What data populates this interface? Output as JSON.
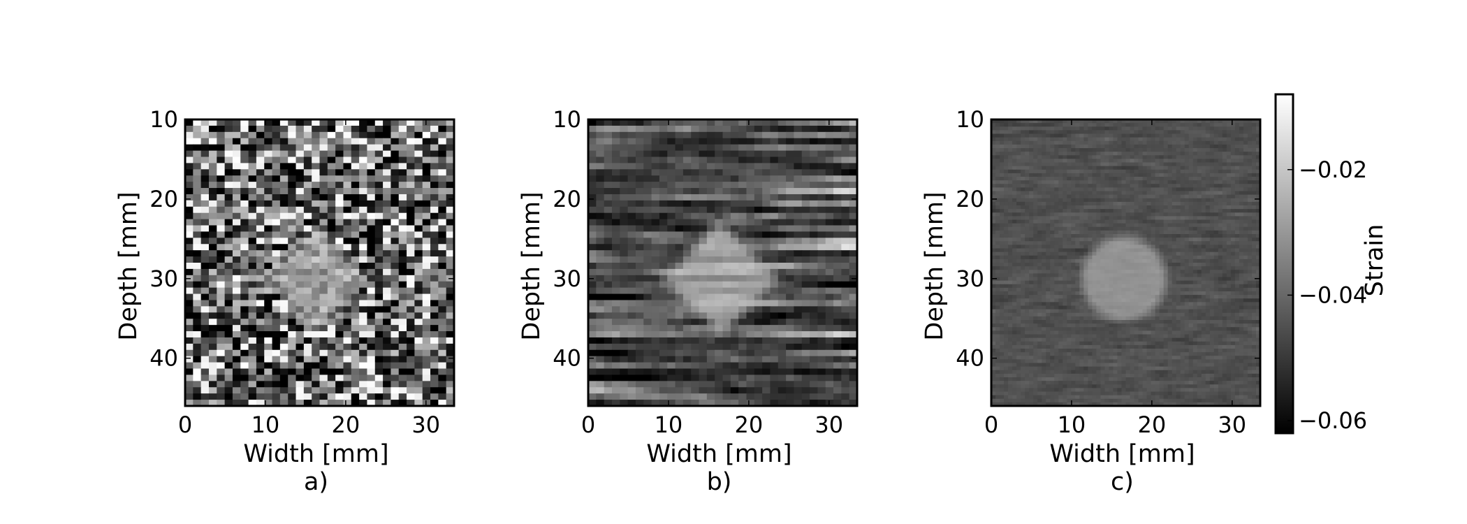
{
  "chart_data": {
    "type": "heatmap",
    "colormap": "gray",
    "shared_xlabel": "Width [mm]",
    "shared_ylabel": "Depth [mm]",
    "xlim": [
      0,
      33.5
    ],
    "ylim": [
      46,
      10
    ],
    "xticks": [
      "0",
      "10",
      "20",
      "30"
    ],
    "xtick_values": [
      0,
      10,
      20,
      30
    ],
    "yticks": [
      "10",
      "20",
      "30",
      "40"
    ],
    "ytick_values": [
      10,
      20,
      30,
      40
    ],
    "panels": [
      {
        "label": "a)",
        "xlabel": "Width [mm]",
        "ylabel": "Depth [mm]",
        "inclusion": {
          "shape": "diamond",
          "center": [
            16.5,
            30
          ],
          "radius": 5.4,
          "strain": -0.028
        },
        "background_strain": -0.045,
        "noise": "high, salt-and-pepper speckle",
        "grid_rows": 46,
        "grid_cols": 34,
        "smoothing": 1,
        "noise_amp": 0.024,
        "sparkle": 0.14,
        "seed": 7
      },
      {
        "label": "b)",
        "xlabel": "Width [mm]",
        "ylabel": "Depth [mm]",
        "inclusion": {
          "shape": "diamond",
          "center": [
            16.5,
            30
          ],
          "radius": 5.8,
          "strain": -0.029
        },
        "background_strain": -0.045,
        "noise": "medium, horizontally streaked",
        "grid_rows": 46,
        "grid_cols": 34,
        "smoothing": 6,
        "noise_amp": 0.02,
        "sparkle": 0.0,
        "seed": 23
      },
      {
        "label": "c)",
        "xlabel": "Width [mm]",
        "ylabel": "Depth [mm]",
        "inclusion": {
          "shape": "circle",
          "center": [
            16.5,
            30
          ],
          "radius": 5.4,
          "strain": -0.031
        },
        "background_strain": -0.045,
        "noise": "low",
        "grid_rows": 80,
        "grid_cols": 64,
        "smoothing": 2,
        "noise_amp": 0.0045,
        "sparkle": 0.0,
        "seed": 51
      }
    ],
    "colorbar": {
      "label": "Strain",
      "vmin": -0.062,
      "vmax": -0.008,
      "ticks": [
        -0.02,
        -0.04,
        -0.06
      ],
      "tick_labels": [
        "−0.02",
        "−0.04",
        "−0.06"
      ]
    }
  }
}
